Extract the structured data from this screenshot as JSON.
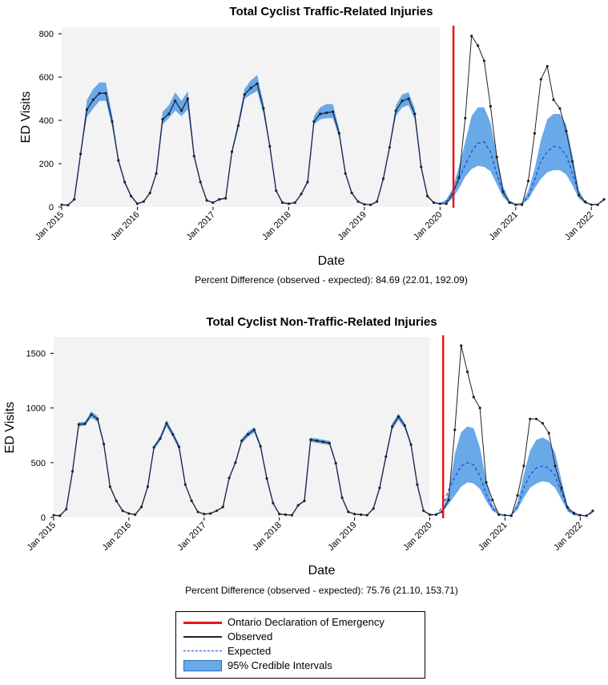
{
  "chart_data": [
    {
      "type": "line",
      "title": "Total Cyclist Traffic-Related Injuries",
      "xlabel": "Date",
      "ylabel": "ED Visits",
      "ylim": [
        0,
        830
      ],
      "yticks": [
        0,
        200,
        400,
        600,
        800
      ],
      "xlim": [
        "2015-01",
        "2022-03"
      ],
      "xticks": [
        {
          "date": "2015-01",
          "label": "Jan 2015"
        },
        {
          "date": "2016-01",
          "label": "Jan 2016"
        },
        {
          "date": "2017-01",
          "label": "Jan 2017"
        },
        {
          "date": "2018-01",
          "label": "Jan 2018"
        },
        {
          "date": "2019-01",
          "label": "Jan 2019"
        },
        {
          "date": "2020-01",
          "label": "Jan 2020"
        },
        {
          "date": "2021-01",
          "label": "Jan 2021"
        },
        {
          "date": "2022-01",
          "label": "Jan 2022"
        }
      ],
      "training_period_end": "2020-01",
      "emergency_declaration": "2020-03",
      "note": "Percent Difference (observed - expected): 84.69 (22.01, 192.09)",
      "start": "2015-01",
      "observed": [
        10,
        8,
        35,
        245,
        450,
        495,
        525,
        525,
        395,
        215,
        115,
        50,
        15,
        25,
        65,
        155,
        405,
        430,
        490,
        445,
        500,
        235,
        115,
        30,
        20,
        35,
        40,
        255,
        375,
        520,
        550,
        570,
        455,
        280,
        75,
        20,
        15,
        20,
        60,
        115,
        395,
        430,
        435,
        440,
        340,
        155,
        65,
        25,
        12,
        10,
        25,
        130,
        275,
        445,
        490,
        500,
        430,
        185,
        50,
        20,
        15,
        15,
        60,
        135,
        410,
        790,
        745,
        675,
        465,
        230,
        70,
        20,
        10,
        10,
        120,
        340,
        590,
        650,
        495,
        455,
        350,
        210,
        55,
        25,
        10,
        10,
        35
      ],
      "expected": [
        null,
        null,
        null,
        null,
        null,
        null,
        null,
        null,
        null,
        null,
        null,
        null,
        null,
        null,
        null,
        null,
        null,
        null,
        null,
        null,
        null,
        null,
        null,
        null,
        null,
        null,
        null,
        null,
        null,
        null,
        null,
        null,
        null,
        null,
        null,
        null,
        null,
        null,
        null,
        null,
        null,
        null,
        null,
        null,
        null,
        null,
        null,
        null,
        null,
        null,
        null,
        null,
        null,
        null,
        null,
        null,
        null,
        null,
        null,
        null,
        15,
        25,
        60,
        130,
        195,
        255,
        295,
        300,
        255,
        150,
        65,
        25,
        12,
        15,
        50,
        125,
        210,
        255,
        280,
        275,
        240,
        155,
        60,
        20,
        12,
        12,
        35
      ],
      "ci_lower": [
        10,
        8,
        35,
        240,
        415,
        455,
        490,
        490,
        370,
        205,
        105,
        45,
        12,
        22,
        60,
        150,
        380,
        410,
        445,
        420,
        450,
        225,
        110,
        28,
        18,
        32,
        38,
        245,
        360,
        500,
        520,
        535,
        430,
        270,
        70,
        18,
        14,
        18,
        55,
        110,
        380,
        405,
        410,
        410,
        320,
        150,
        60,
        22,
        10,
        9,
        22,
        125,
        265,
        420,
        460,
        470,
        405,
        175,
        45,
        18,
        12,
        15,
        40,
        85,
        140,
        175,
        190,
        185,
        165,
        105,
        45,
        18,
        10,
        10,
        35,
        85,
        130,
        160,
        170,
        170,
        150,
        100,
        40,
        15,
        10,
        10,
        28
      ],
      "ci_upper": [
        10,
        8,
        35,
        250,
        495,
        545,
        575,
        575,
        425,
        225,
        120,
        55,
        18,
        28,
        70,
        160,
        440,
        470,
        530,
        490,
        535,
        245,
        125,
        33,
        22,
        38,
        45,
        265,
        395,
        545,
        585,
        610,
        480,
        290,
        80,
        22,
        18,
        22,
        65,
        125,
        420,
        460,
        475,
        475,
        360,
        160,
        70,
        28,
        14,
        12,
        28,
        140,
        285,
        470,
        520,
        530,
        455,
        195,
        55,
        22,
        15,
        35,
        85,
        185,
        300,
        420,
        460,
        460,
        390,
        240,
        95,
        30,
        15,
        20,
        75,
        175,
        310,
        405,
        430,
        430,
        380,
        240,
        80,
        25,
        15,
        15,
        40
      ]
    },
    {
      "type": "line",
      "title": "Total Cyclist Non-Traffic-Related Injuries",
      "xlabel": "Date",
      "ylabel": "ED Visits",
      "ylim": [
        0,
        1650
      ],
      "yticks": [
        0,
        500,
        1000,
        1500
      ],
      "xlim": [
        "2015-01",
        "2022-03"
      ],
      "xticks": [
        {
          "date": "2015-01",
          "label": "Jan 2015"
        },
        {
          "date": "2016-01",
          "label": "Jan 2016"
        },
        {
          "date": "2017-01",
          "label": "Jan 2017"
        },
        {
          "date": "2018-01",
          "label": "Jan 2018"
        },
        {
          "date": "2019-01",
          "label": "Jan 2019"
        },
        {
          "date": "2020-01",
          "label": "Jan 2020"
        },
        {
          "date": "2021-01",
          "label": "Jan 2021"
        },
        {
          "date": "2022-01",
          "label": "Jan 2022"
        }
      ],
      "training_period_end": "2020-01",
      "emergency_declaration": "2020-03",
      "note": "Percent Difference (observed - expected): 75.76 (21.10, 153.71)",
      "start": "2015-01",
      "observed": [
        20,
        15,
        75,
        420,
        850,
        855,
        940,
        900,
        670,
        280,
        150,
        60,
        35,
        25,
        95,
        280,
        640,
        720,
        860,
        760,
        645,
        300,
        150,
        50,
        30,
        35,
        60,
        95,
        360,
        500,
        700,
        760,
        800,
        650,
        355,
        130,
        30,
        25,
        20,
        110,
        150,
        710,
        700,
        690,
        680,
        495,
        180,
        50,
        30,
        25,
        20,
        80,
        270,
        555,
        830,
        920,
        840,
        665,
        300,
        60,
        25,
        25,
        50,
        160,
        800,
        1570,
        1330,
        1100,
        1000,
        320,
        160,
        25,
        20,
        15,
        200,
        470,
        900,
        900,
        860,
        770,
        470,
        270,
        90,
        40,
        20,
        15,
        60
      ],
      "expected": [
        null,
        null,
        null,
        null,
        null,
        null,
        null,
        null,
        null,
        null,
        null,
        null,
        null,
        null,
        null,
        null,
        null,
        null,
        null,
        null,
        null,
        null,
        null,
        null,
        null,
        null,
        null,
        null,
        null,
        null,
        null,
        null,
        null,
        null,
        null,
        null,
        null,
        null,
        null,
        null,
        null,
        null,
        null,
        null,
        null,
        null,
        null,
        null,
        null,
        null,
        null,
        null,
        null,
        null,
        null,
        null,
        null,
        null,
        null,
        null,
        20,
        25,
        90,
        250,
        370,
        470,
        500,
        480,
        380,
        210,
        80,
        30,
        15,
        20,
        100,
        270,
        390,
        450,
        470,
        450,
        380,
        230,
        70,
        25,
        15,
        15,
        50
      ],
      "ci_lower": [
        20,
        15,
        75,
        410,
        830,
        840,
        910,
        875,
        650,
        270,
        145,
        55,
        32,
        22,
        90,
        270,
        620,
        700,
        830,
        735,
        620,
        290,
        145,
        48,
        28,
        32,
        55,
        90,
        345,
        485,
        680,
        735,
        775,
        630,
        345,
        125,
        28,
        22,
        18,
        100,
        145,
        690,
        680,
        670,
        660,
        480,
        175,
        48,
        28,
        22,
        18,
        75,
        260,
        535,
        800,
        890,
        815,
        645,
        290,
        55,
        20,
        20,
        50,
        120,
        200,
        280,
        320,
        310,
        260,
        150,
        60,
        25,
        12,
        15,
        70,
        180,
        270,
        310,
        330,
        320,
        270,
        165,
        55,
        20,
        12,
        12,
        40
      ],
      "ci_upper": [
        20,
        15,
        75,
        430,
        870,
        875,
        970,
        925,
        690,
        290,
        155,
        65,
        38,
        28,
        100,
        290,
        660,
        745,
        890,
        785,
        670,
        310,
        155,
        55,
        32,
        38,
        65,
        100,
        375,
        515,
        720,
        785,
        825,
        670,
        365,
        135,
        32,
        28,
        22,
        120,
        155,
        730,
        720,
        710,
        700,
        510,
        185,
        55,
        32,
        28,
        22,
        85,
        280,
        575,
        860,
        950,
        865,
        685,
        310,
        65,
        30,
        30,
        70,
        220,
        580,
        780,
        830,
        815,
        640,
        330,
        120,
        40,
        20,
        25,
        140,
        390,
        610,
        710,
        730,
        700,
        590,
        340,
        100,
        35,
        20,
        20,
        65
      ]
    }
  ],
  "legend": {
    "items": [
      {
        "label": "Ontario Declaration of Emergency",
        "style": "red-line",
        "color": "#e8141a"
      },
      {
        "label": "Observed",
        "style": "black-line",
        "color": "#222222"
      },
      {
        "label": "Expected",
        "style": "blue-dashed",
        "color": "#1f4fd9"
      },
      {
        "label": "95% Credible Intervals",
        "style": "blue-fill",
        "color": "#6aa9e8"
      }
    ]
  },
  "colors": {
    "training_background": "#f3f3f3",
    "observed": "#222222",
    "fitted_line": "#1f4fd9",
    "expected": "#1f4fd9",
    "ci_fill": "#6aa9e8",
    "emergency_line": "#e8141a"
  }
}
